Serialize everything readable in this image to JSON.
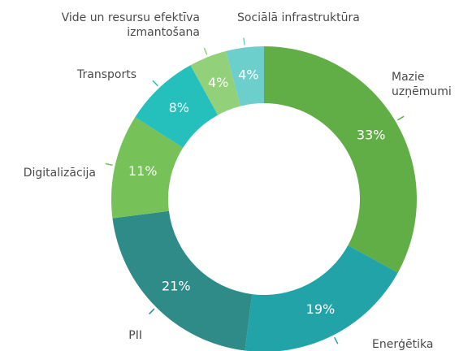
{
  "chart_data": {
    "type": "donut",
    "categories": [
      "Mazie\nuzņēmumi",
      "Enerģētika",
      "PII",
      "Digitalizācija",
      "Transports",
      "Vide un resursu efektīva\nizmantošana",
      "Sociālā infrastruktūra"
    ],
    "values": [
      33,
      19,
      21,
      11,
      8,
      4,
      4
    ],
    "value_labels": [
      "33%",
      "19%",
      "21%",
      "11%",
      "8%",
      "4%",
      "4%"
    ],
    "colors": [
      "#62ae46",
      "#22a3a8",
      "#2e8b88",
      "#76c158",
      "#25c0bb",
      "#93d07a",
      "#6ccfcc"
    ]
  }
}
